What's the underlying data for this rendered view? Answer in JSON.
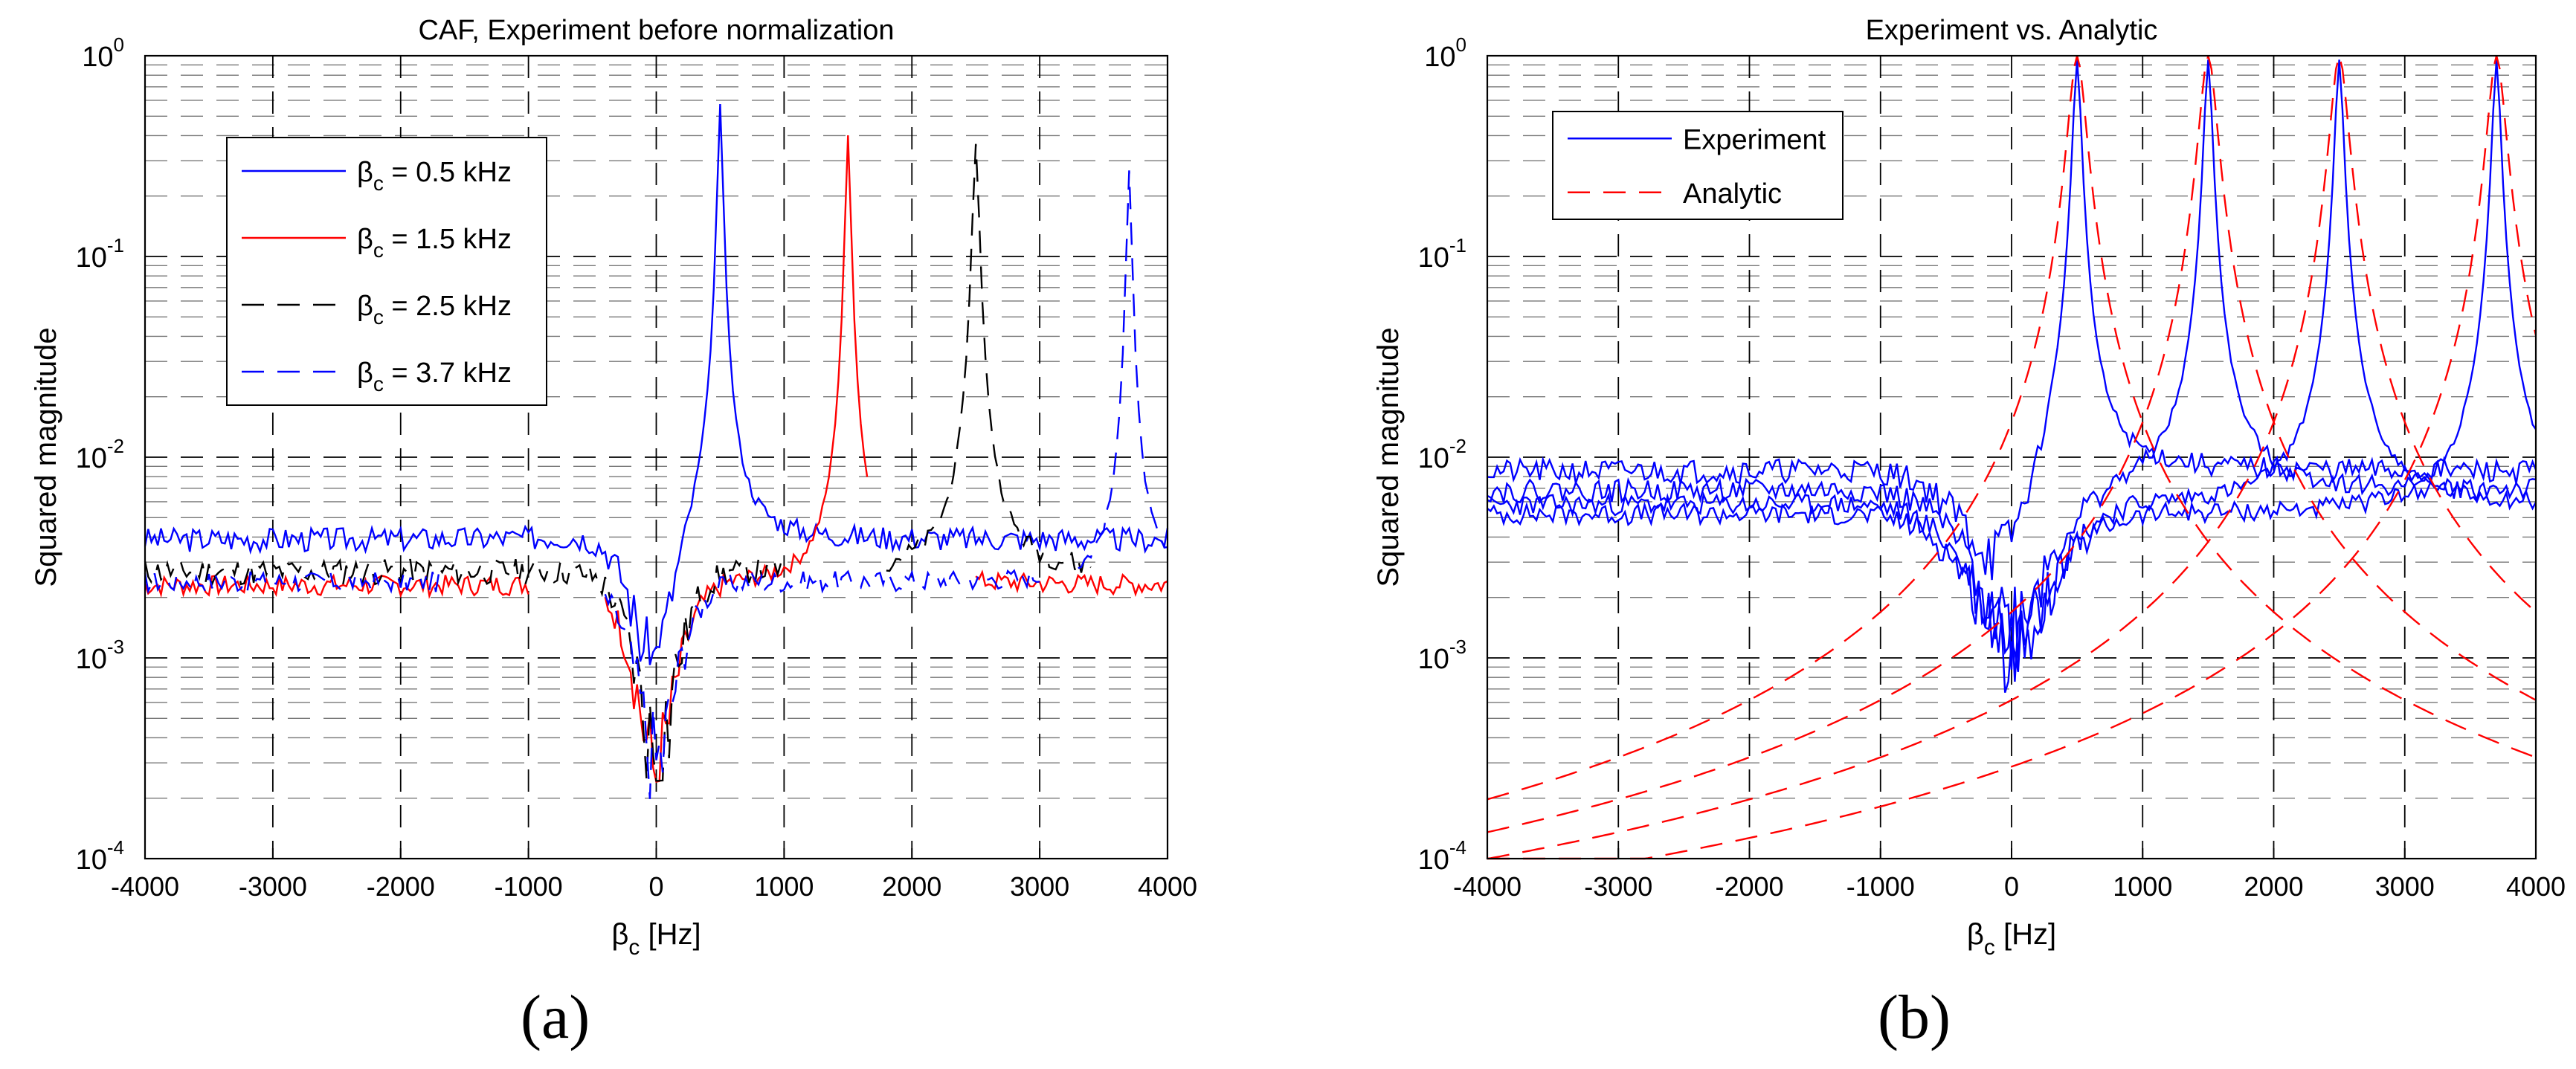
{
  "chart_data": [
    {
      "type": "line",
      "yscale": "log",
      "title": "CAF, Experiment before normalization",
      "xlabel": "β",
      "xlabel_sub": "c",
      "xlabel_unit": " [Hz]",
      "ylabel": "Squared magnitude",
      "xlim": [
        -4000,
        4000
      ],
      "ylim": [
        0.0001,
        1
      ],
      "xticks": [
        "-4000",
        "-3000",
        "-2000",
        "-1000",
        "0",
        "1000",
        "2000",
        "3000",
        "4000"
      ],
      "yticks": [
        {
          "base": "10",
          "exp": "-4"
        },
        {
          "base": "10",
          "exp": "-3"
        },
        {
          "base": "10",
          "exp": "-2"
        },
        {
          "base": "10",
          "exp": "-1"
        },
        {
          "base": "10",
          "exp": "0"
        }
      ],
      "grid": true,
      "legend_position": "top-left",
      "series": [
        {
          "name": "β",
          "name_sub": "c",
          "name_rest": " = 0.5 kHz",
          "color": "#0000ff",
          "dash": "solid",
          "width": 2.4,
          "generator": {
            "floor": 0.0039,
            "noise": 0.14,
            "peak": 500,
            "peak_amp": 0.6,
            "dip_amp": 0.0036,
            "dip_width": 220,
            "width": 18,
            "seed": 3
          }
        },
        {
          "name": "β",
          "name_sub": "c",
          "name_rest": " = 1.5 kHz",
          "color": "#ff0000",
          "dash": "solid",
          "width": 2.4,
          "generator": {
            "floor": 0.0023,
            "noise": 0.12,
            "peak": 1500,
            "peak_amp": 0.42,
            "dip_amp": 0.0021,
            "dip_width": 220,
            "width": 18,
            "seed": 7,
            "segments": [
              [
                -4000,
                -1000
              ],
              [
                -400,
                1650
              ],
              [
                2500,
                4000
              ]
            ]
          }
        },
        {
          "name": "β",
          "name_sub": "c",
          "name_rest": " = 2.5 kHz",
          "color": "#000000",
          "dash": "30 18",
          "width": 2.4,
          "generator": {
            "floor": 0.0027,
            "noise": 0.15,
            "peak": 2500,
            "peak_amp": 0.38,
            "dip_amp": 0.0024,
            "dip_width": 220,
            "width": 22,
            "seed": 11,
            "segments": [
              [
                -4000,
                1000
              ],
              [
                1800,
                3400
              ]
            ]
          }
        },
        {
          "name": "β",
          "name_sub": "c",
          "name_rest": " = 3.7 kHz",
          "color": "#0000ff",
          "dash": "30 18",
          "width": 2.4,
          "generator": {
            "floor": 0.0024,
            "noise": 0.12,
            "peak": 3700,
            "peak_amp": 0.28,
            "dip_amp": 0.0021,
            "dip_width": 220,
            "width": 18,
            "seed": 17,
            "segments": [
              [
                -4000,
                -1700
              ],
              [
                -400,
                3000
              ],
              [
                3300,
                4000
              ]
            ]
          }
        }
      ]
    },
    {
      "type": "line",
      "yscale": "log",
      "title": "Experiment vs. Analytic",
      "xlabel": "β",
      "xlabel_sub": "c",
      "xlabel_unit": " [Hz]",
      "ylabel": "Squared magnitude",
      "xlim": [
        -4000,
        4000
      ],
      "ylim": [
        0.0001,
        1
      ],
      "xticks": [
        "-4000",
        "-3000",
        "-2000",
        "-1000",
        "0",
        "1000",
        "2000",
        "3000",
        "4000"
      ],
      "yticks": [
        {
          "base": "10",
          "exp": "-4"
        },
        {
          "base": "10",
          "exp": "-3"
        },
        {
          "base": "10",
          "exp": "-2"
        },
        {
          "base": "10",
          "exp": "-1"
        },
        {
          "base": "10",
          "exp": "0"
        }
      ],
      "grid": true,
      "legend_position": "top-left",
      "legend": [
        {
          "name": "Experiment",
          "color": "#0000ff",
          "dash": "solid"
        },
        {
          "name": "Analytic",
          "color": "#ff0000",
          "dash": "30 18"
        }
      ],
      "series": [
        {
          "name": "Experiment",
          "color": "#0000ff",
          "dash": "solid",
          "width": 2.4,
          "generator": {
            "floor": 0.0085,
            "noise": 0.14,
            "peak": 500,
            "peak_amp": 1.0,
            "dip_amp": 0.0073,
            "dip_width": 400,
            "width": 28,
            "seed": 21
          }
        },
        {
          "name": "Experiment",
          "color": "#0000ff",
          "dash": "solid",
          "width": 2.4,
          "generator": {
            "floor": 0.0068,
            "noise": 0.13,
            "peak": 1500,
            "peak_amp": 1.0,
            "dip_amp": 0.0055,
            "dip_width": 400,
            "width": 28,
            "seed": 22
          }
        },
        {
          "name": "Experiment",
          "color": "#0000ff",
          "dash": "solid",
          "width": 2.4,
          "generator": {
            "floor": 0.0058,
            "noise": 0.12,
            "peak": 2500,
            "peak_amp": 1.0,
            "dip_amp": 0.0046,
            "dip_width": 400,
            "width": 28,
            "seed": 23
          }
        },
        {
          "name": "Experiment",
          "color": "#0000ff",
          "dash": "solid",
          "width": 2.4,
          "generator": {
            "floor": 0.0052,
            "noise": 0.12,
            "peak": 3700,
            "peak_amp": 1.0,
            "dip_amp": 0.004,
            "dip_width": 400,
            "width": 28,
            "seed": 24
          }
        },
        {
          "name": "Analytic",
          "color": "#ff0000",
          "dash": "30 18",
          "width": 2.4,
          "generator": {
            "lorentz": true,
            "peak": 500,
            "peak_amp": 1.0,
            "width": 28,
            "seed": 31
          }
        },
        {
          "name": "Analytic",
          "color": "#ff0000",
          "dash": "30 18",
          "width": 2.4,
          "generator": {
            "lorentz": true,
            "peak": 1500,
            "peak_amp": 1.0,
            "width": 28,
            "seed": 32
          }
        },
        {
          "name": "Analytic",
          "color": "#ff0000",
          "dash": "30 18",
          "width": 2.4,
          "generator": {
            "lorentz": true,
            "peak": 2500,
            "peak_amp": 1.0,
            "width": 28,
            "seed": 33
          }
        },
        {
          "name": "Analytic",
          "color": "#ff0000",
          "dash": "30 18",
          "width": 2.4,
          "generator": {
            "lorentz": true,
            "peak": 3700,
            "peak_amp": 1.0,
            "width": 28,
            "seed": 34
          }
        }
      ]
    }
  ],
  "panel_labels": [
    "(a)",
    "(b)"
  ]
}
